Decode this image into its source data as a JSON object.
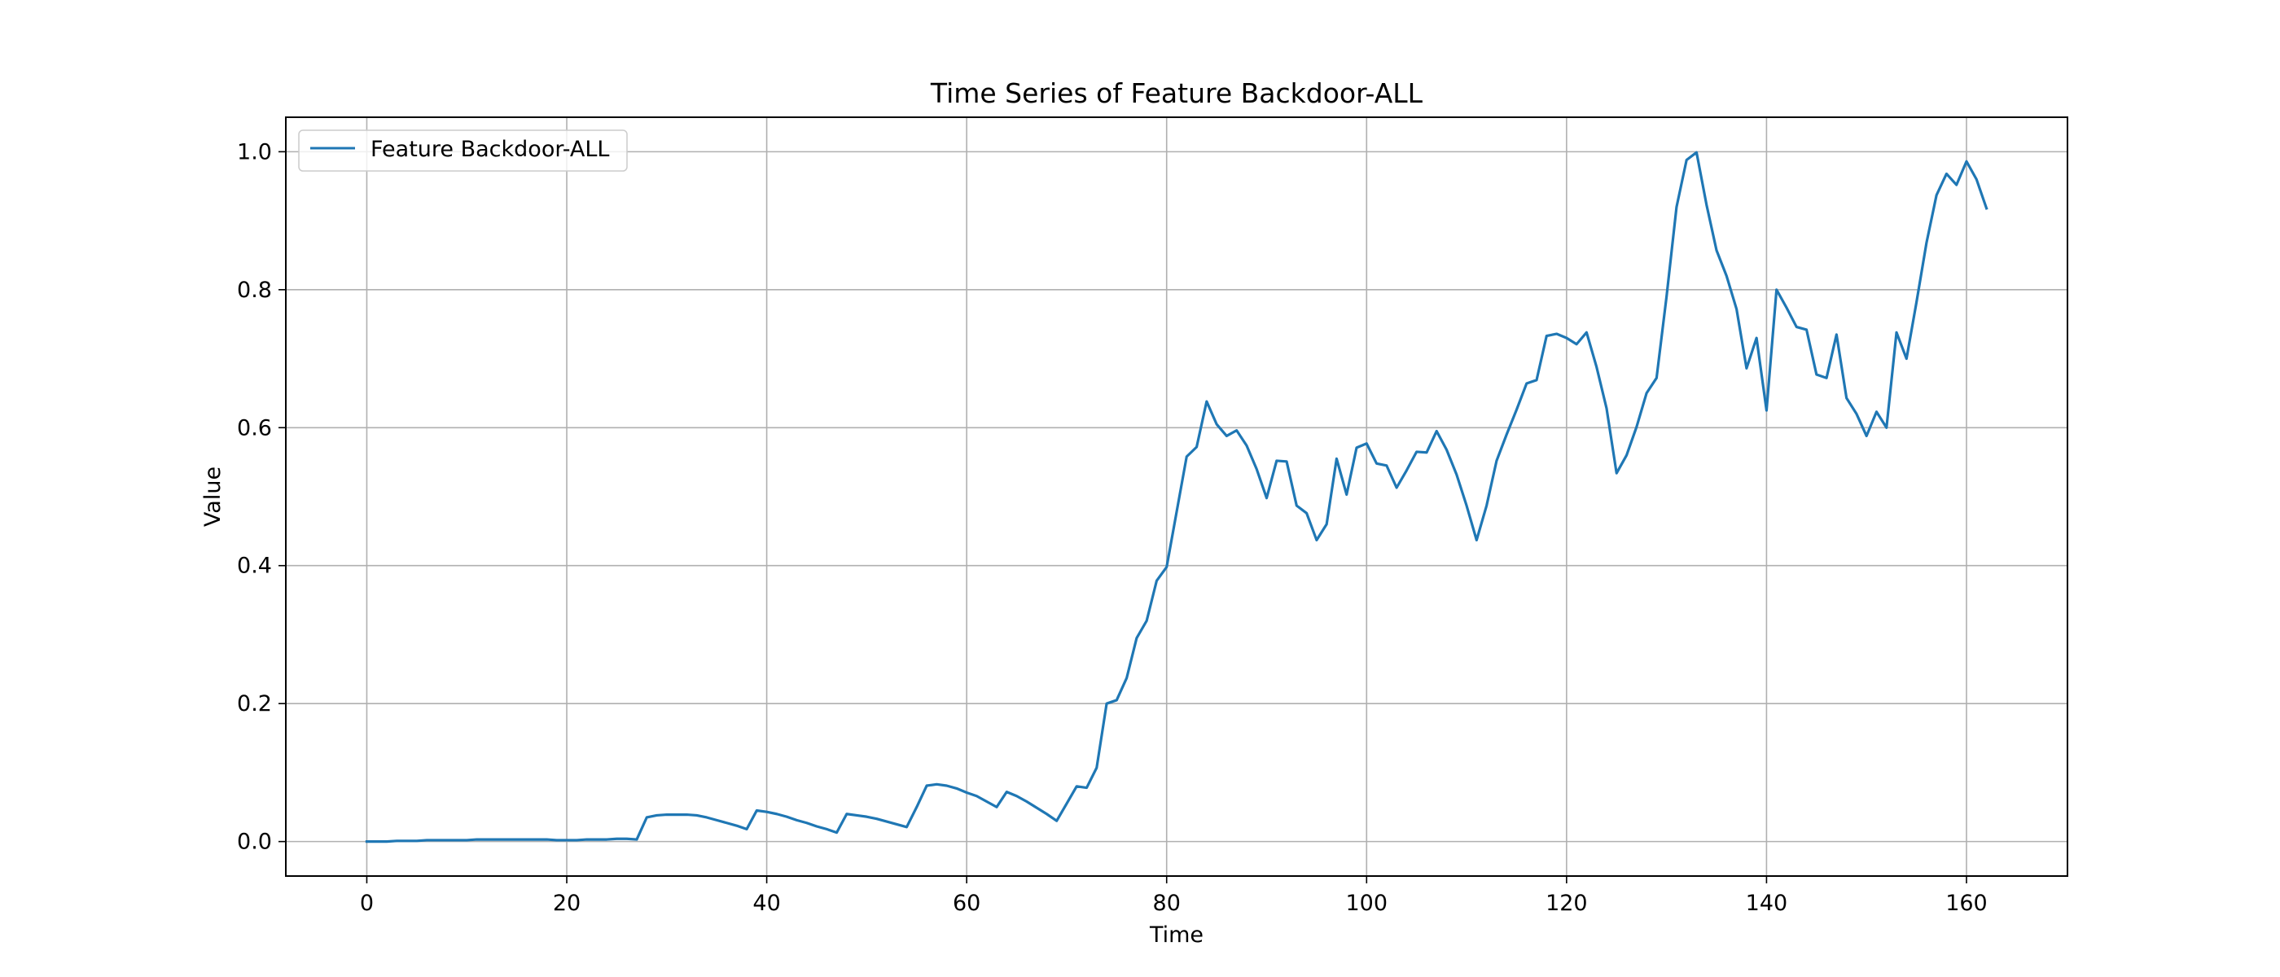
{
  "chart_data": {
    "type": "line",
    "title": "Time Series of Feature Backdoor-ALL",
    "xlabel": "Time",
    "ylabel": "Value",
    "xlim": [
      -8.1,
      170.1
    ],
    "ylim": [
      -0.05,
      1.05
    ],
    "xticks": [
      0,
      20,
      40,
      60,
      80,
      100,
      120,
      140,
      160
    ],
    "yticks": [
      0.0,
      0.2,
      0.4,
      0.6,
      0.8,
      1.0
    ],
    "xtick_labels": [
      "0",
      "20",
      "40",
      "60",
      "80",
      "100",
      "120",
      "140",
      "160"
    ],
    "ytick_labels": [
      "0.0",
      "0.2",
      "0.4",
      "0.6",
      "0.8",
      "1.0"
    ],
    "grid": true,
    "legend_position": "top-left",
    "color": "#1f77b4",
    "series": [
      {
        "name": "Feature Backdoor-ALL",
        "x": [
          0,
          1,
          2,
          3,
          4,
          5,
          6,
          7,
          8,
          9,
          10,
          11,
          12,
          13,
          14,
          15,
          16,
          17,
          18,
          19,
          20,
          21,
          22,
          23,
          24,
          25,
          26,
          27,
          28,
          29,
          30,
          31,
          32,
          33,
          34,
          35,
          36,
          37,
          38,
          39,
          40,
          41,
          42,
          43,
          44,
          45,
          46,
          47,
          48,
          49,
          50,
          51,
          52,
          53,
          54,
          55,
          56,
          57,
          58,
          59,
          60,
          61,
          62,
          63,
          64,
          65,
          66,
          67,
          68,
          69,
          70,
          71,
          72,
          73,
          74,
          75,
          76,
          77,
          78,
          79,
          80,
          81,
          82,
          83,
          84,
          85,
          86,
          87,
          88,
          89,
          90,
          91,
          92,
          93,
          94,
          95,
          96,
          97,
          98,
          99,
          100,
          101,
          102,
          103,
          104,
          105,
          106,
          107,
          108,
          109,
          110,
          111,
          112,
          113,
          114,
          115,
          116,
          117,
          118,
          119,
          120,
          121,
          122,
          123,
          124,
          125,
          126,
          127,
          128,
          129,
          130,
          131,
          132,
          133,
          134,
          135,
          136,
          137,
          138,
          139,
          140,
          141,
          142,
          143,
          144,
          145,
          146,
          147,
          148,
          149,
          150,
          151,
          152,
          153,
          154,
          155,
          156,
          157,
          158,
          159,
          160,
          161,
          162
        ],
        "y": [
          0.0,
          0.0,
          0.0,
          0.001,
          0.001,
          0.001,
          0.002,
          0.002,
          0.002,
          0.002,
          0.002,
          0.003,
          0.003,
          0.003,
          0.003,
          0.003,
          0.003,
          0.003,
          0.003,
          0.002,
          0.002,
          0.002,
          0.003,
          0.003,
          0.003,
          0.004,
          0.004,
          0.003,
          0.035,
          0.038,
          0.039,
          0.039,
          0.039,
          0.038,
          0.035,
          0.031,
          0.027,
          0.023,
          0.018,
          0.045,
          0.043,
          0.04,
          0.036,
          0.031,
          0.027,
          0.022,
          0.018,
          0.013,
          0.04,
          0.038,
          0.036,
          0.033,
          0.029,
          0.025,
          0.021,
          0.05,
          0.081,
          0.083,
          0.081,
          0.077,
          0.071,
          0.066,
          0.058,
          0.05,
          0.072,
          0.066,
          0.058,
          0.049,
          0.04,
          0.03,
          0.055,
          0.08,
          0.078,
          0.107,
          0.2,
          0.205,
          0.237,
          0.295,
          0.32,
          0.378,
          0.398,
          0.478,
          0.558,
          0.572,
          0.638,
          0.605,
          0.588,
          0.596,
          0.574,
          0.54,
          0.498,
          0.552,
          0.551,
          0.487,
          0.476,
          0.437,
          0.46,
          0.555,
          0.503,
          0.571,
          0.577,
          0.548,
          0.545,
          0.513,
          0.538,
          0.565,
          0.564,
          0.595,
          0.568,
          0.532,
          0.487,
          0.437,
          0.487,
          0.552,
          0.59,
          0.626,
          0.664,
          0.669,
          0.733,
          0.736,
          0.73,
          0.721,
          0.738,
          0.688,
          0.628,
          0.534,
          0.56,
          0.601,
          0.65,
          0.672,
          0.79,
          0.92,
          0.988,
          0.999,
          0.923,
          0.857,
          0.82,
          0.772,
          0.686,
          0.73,
          0.625,
          0.8,
          0.774,
          0.746,
          0.742,
          0.677,
          0.672,
          0.735,
          0.643,
          0.62,
          0.588,
          0.623,
          0.6,
          0.738,
          0.7,
          0.782,
          0.868,
          0.937,
          0.968,
          0.952,
          0.986,
          0.96,
          0.918
        ]
      }
    ]
  }
}
